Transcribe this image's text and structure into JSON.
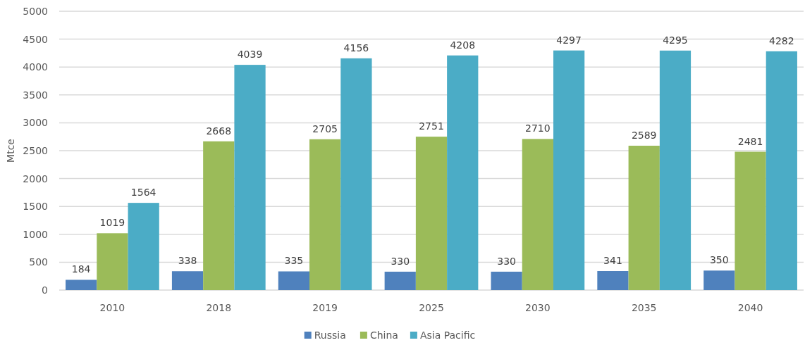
{
  "chart_data": {
    "type": "bar",
    "ylabel": "Mtce",
    "categories": [
      "2010",
      "2018",
      "2019",
      "2025",
      "2030",
      "2035",
      "2040"
    ],
    "series": [
      {
        "name": "Russia",
        "color": "#4f81bd",
        "values": [
          184,
          338,
          335,
          330,
          330,
          341,
          350
        ]
      },
      {
        "name": "China",
        "color": "#9bbb59",
        "values": [
          1019,
          2668,
          2705,
          2751,
          2710,
          2589,
          2481
        ]
      },
      {
        "name": "Asia Pacific",
        "color": "#4bacc6",
        "values": [
          1564,
          4039,
          4156,
          4208,
          4297,
          4295,
          4282
        ]
      }
    ],
    "ylim": [
      0,
      5000
    ],
    "yticks": [
      0,
      500,
      1000,
      1500,
      2000,
      2500,
      3000,
      3500,
      4000,
      4500,
      5000
    ],
    "grid": "y",
    "legend": "bottom",
    "data_labels": true
  }
}
